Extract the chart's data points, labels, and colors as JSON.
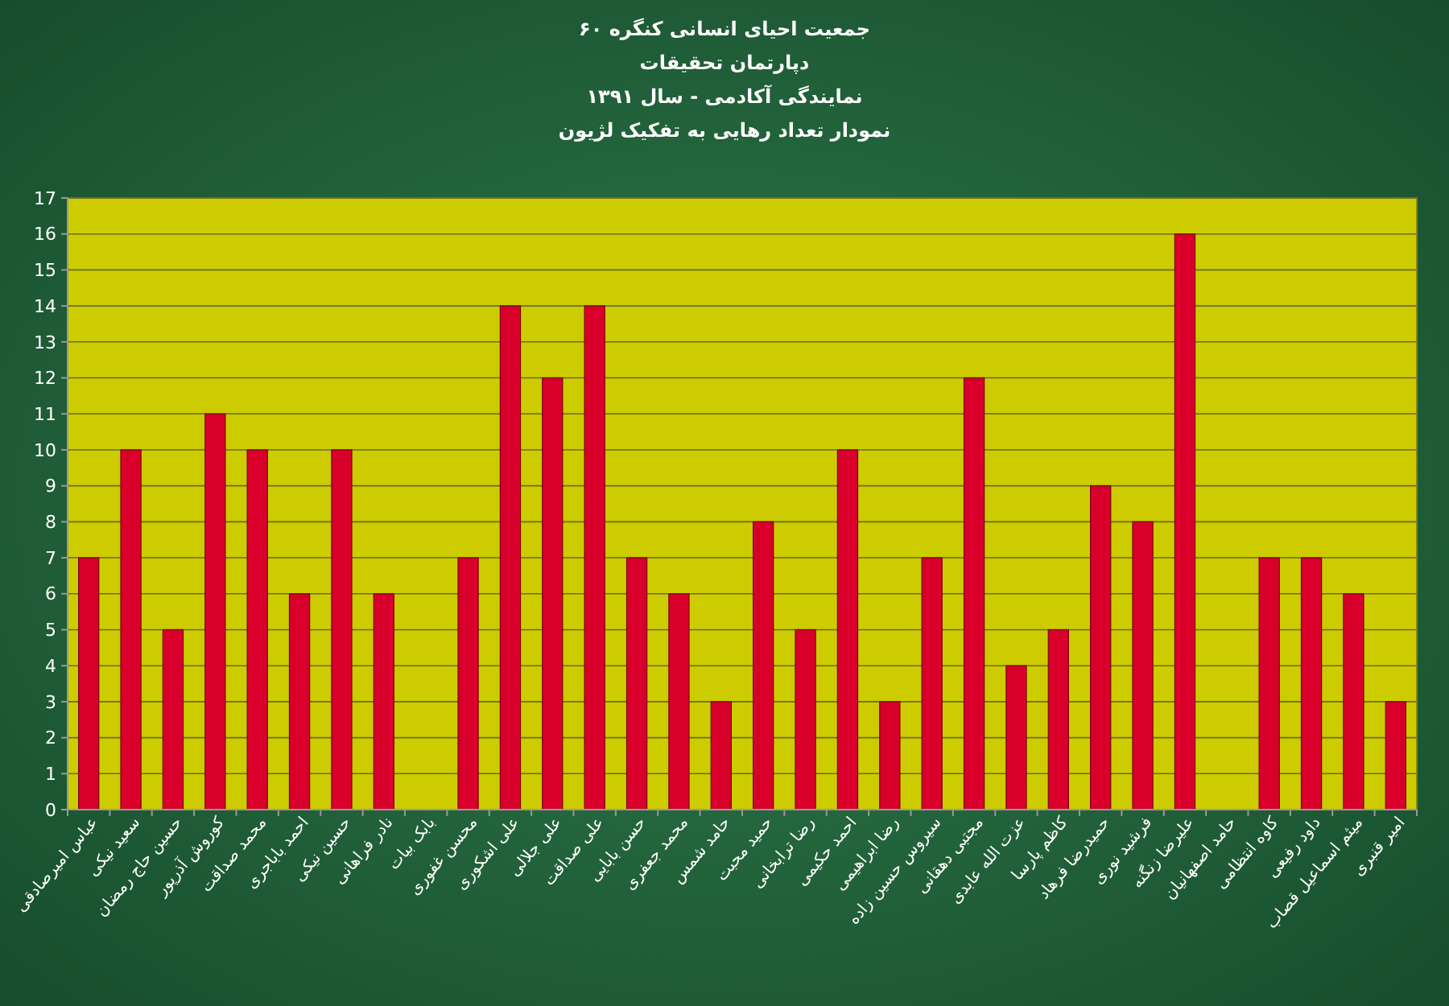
{
  "chart_data": {
    "type": "bar",
    "title": "جمعیت احیای انسانی کنگره ۶۰",
    "subtitle": "دپارتمان تحقیقات\nنمایندگی آکادمی - سال ۱۳۹۱\nنمودار تعداد رهایی به تفکیک لژیون",
    "categories": [
      "عباس امیرصادقی",
      "سعید نیکی",
      "حسین حاج رمضان",
      "کوروش آذرپور",
      "محمد صداقت",
      "احمد باباجری",
      "حسین نیکی",
      "نادر فراهانی",
      "بابک بیات",
      "محسن غفوری",
      "علی اشکوری",
      "علی جلالی",
      "علی صداقت",
      "حسن بابایی",
      "محمد جعفری",
      "حامد شمس",
      "حمید محبت",
      "رضا ترابخانی",
      "احمد حکیمی",
      "رضا ابراهیمی",
      "سیروس حسین زاده",
      "مجتبی دهقانی",
      "عزت الله عابدی",
      "کاظم پارسا",
      "حمیدرضا فرهاد",
      "فرشید نوری",
      "علیرضا زنگنه",
      "حامد اصفهانیان",
      "کاوه انتظامی",
      "داود رفیعی",
      "میثم اسماعیل قصاب",
      "امیر قنبری"
    ],
    "values": [
      7,
      10,
      5,
      11,
      10,
      6,
      10,
      6,
      0,
      7,
      14,
      12,
      14,
      7,
      6,
      3,
      8,
      5,
      10,
      3,
      7,
      12,
      4,
      5,
      9,
      8,
      16,
      0,
      7,
      7,
      6,
      3
    ],
    "color": "#d8002a",
    "ylim": [
      0,
      17
    ],
    "yticks": [
      0,
      1,
      2,
      3,
      4,
      5,
      6,
      7,
      8,
      9,
      10,
      11,
      12,
      13,
      14,
      15,
      16,
      17
    ],
    "grid": "y"
  }
}
